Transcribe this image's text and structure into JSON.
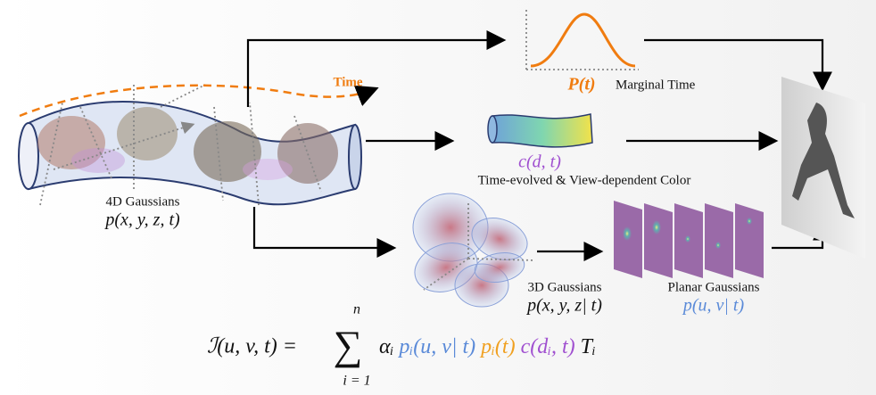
{
  "time_label": "Time",
  "marginal": {
    "symbol": "P(t)",
    "label": "Marginal Time"
  },
  "color": {
    "symbol": "c(d, t)",
    "label": "Time-evolved & View-dependent Color"
  },
  "gaussians_4d": {
    "label": "4D Gaussians",
    "symbol": "p(x, y, z, t)"
  },
  "gaussians_3d": {
    "label": "3D Gaussians",
    "symbol": "p(x, y, z| t)"
  },
  "planar": {
    "label": "Planar Gaussians",
    "symbol": "p(u, v| t)"
  },
  "formula": {
    "lhs": "ℐ(u, v, t) =",
    "sum": "∑",
    "upper": "n",
    "lower": "i = 1",
    "terms": [
      "αᵢ",
      "pᵢ(u, v| t)",
      "pᵢ(t)",
      "c(dᵢ, t)",
      "Tᵢ"
    ]
  }
}
